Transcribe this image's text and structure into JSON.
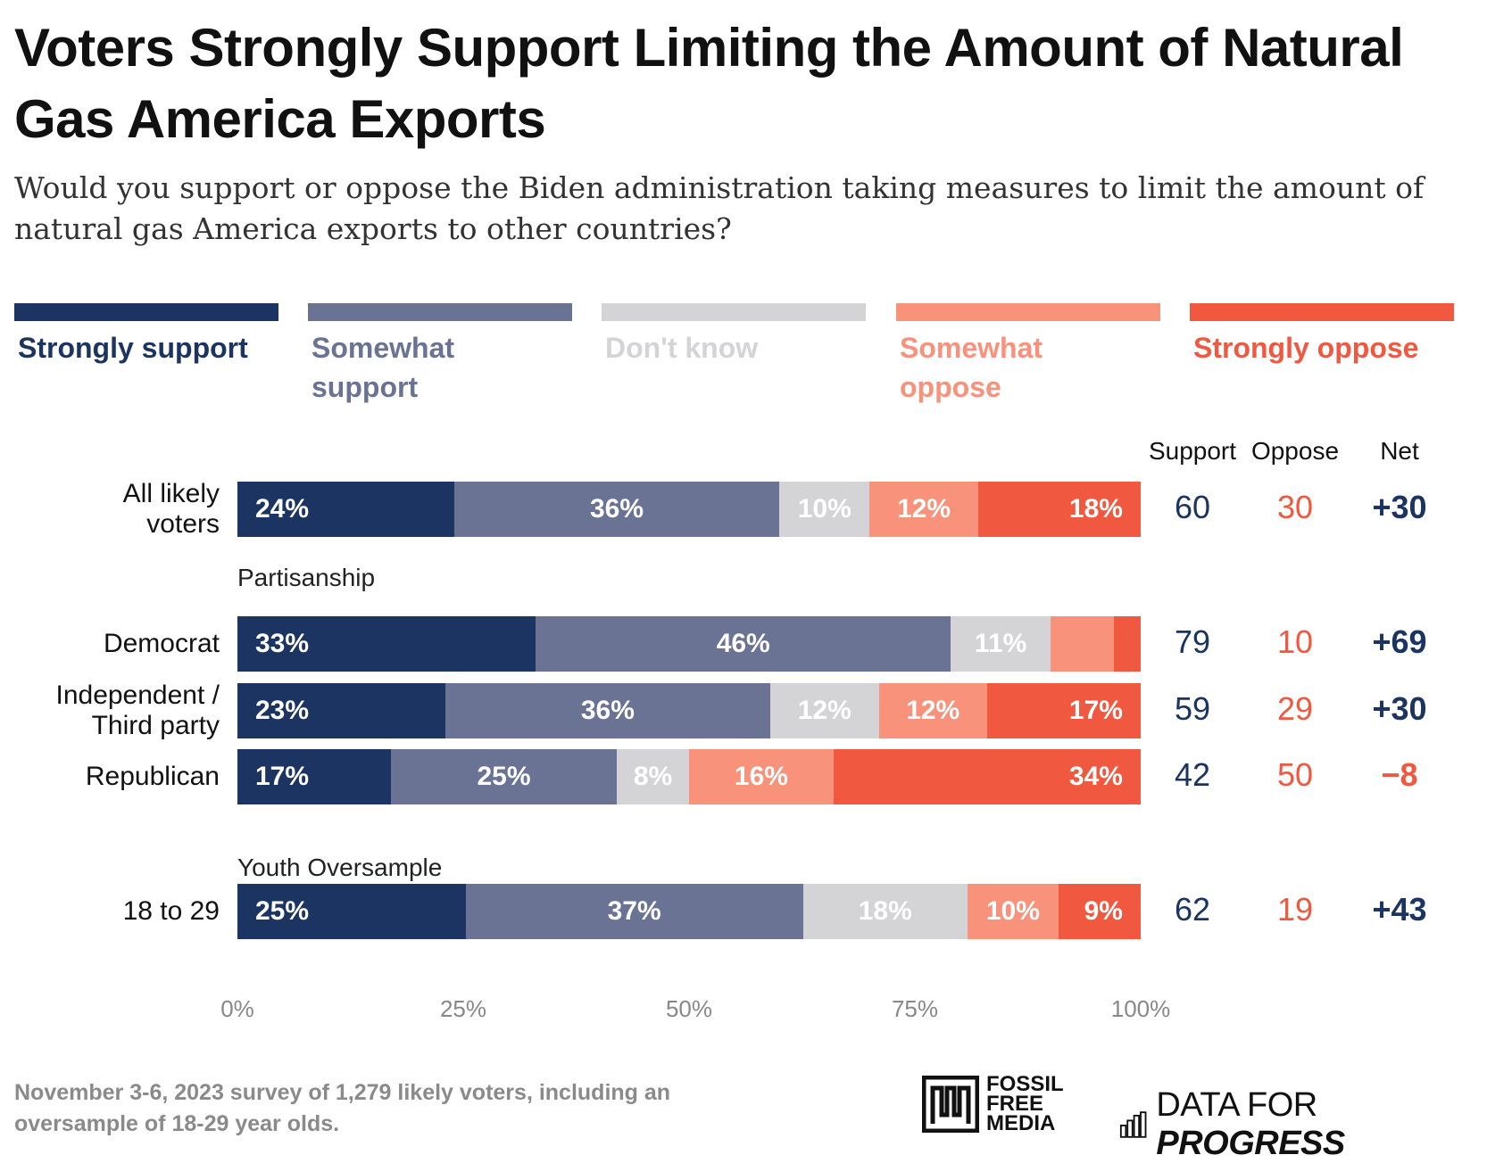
{
  "title": "Voters Strongly Support Limiting the Amount of Natural Gas America Exports",
  "subtitle": "Would you support or oppose the Biden administration taking measures to limit the amount of natural gas America exports to other countries?",
  "legend": [
    {
      "label": "Strongly support",
      "color": "#1c3461"
    },
    {
      "label": "Somewhat support",
      "color": "#6a7393"
    },
    {
      "label": "Don't know",
      "color": "#d4d4d6"
    },
    {
      "label": "Somewhat oppose",
      "color": "#f9927a"
    },
    {
      "label": "Strongly oppose",
      "color": "#f0583f"
    }
  ],
  "columns": {
    "support": "Support",
    "oppose": "Oppose",
    "net": "Net"
  },
  "stat_colors": {
    "support": "#1c3461",
    "oppose": "#f0583f"
  },
  "group_labels": {
    "partisanship": "Partisanship",
    "youth": "Youth Oversample"
  },
  "chart_data": {
    "type": "bar",
    "orientation": "horizontal",
    "stacked": true,
    "xlim": [
      0,
      100
    ],
    "x_ticks": [
      "0%",
      "25%",
      "50%",
      "75%",
      "100%"
    ],
    "series_names": [
      "Strongly support",
      "Somewhat support",
      "Don't know",
      "Somewhat oppose",
      "Strongly oppose"
    ],
    "rows": [
      {
        "label": "All likely\nvoters",
        "values": [
          24,
          36,
          10,
          12,
          18
        ],
        "labels": [
          "24%",
          "36%",
          "10%",
          "12%",
          "18%"
        ],
        "support": "60",
        "oppose": "30",
        "net": "+30"
      },
      {
        "label": "Democrat",
        "values": [
          33,
          46,
          11,
          7,
          3
        ],
        "labels": [
          "33%",
          "46%",
          "11%",
          "",
          ""
        ],
        "support": "79",
        "oppose": "10",
        "net": "+69"
      },
      {
        "label": "Independent /\nThird party",
        "values": [
          23,
          36,
          12,
          12,
          17
        ],
        "labels": [
          "23%",
          "36%",
          "12%",
          "12%",
          "17%"
        ],
        "support": "59",
        "oppose": "29",
        "net": "+30"
      },
      {
        "label": "Republican",
        "values": [
          17,
          25,
          8,
          16,
          34
        ],
        "labels": [
          "17%",
          "25%",
          "8%",
          "16%",
          "34%"
        ],
        "support": "42",
        "oppose": "50",
        "net": "−8"
      },
      {
        "label": "18 to 29",
        "values": [
          25,
          37,
          18,
          10,
          9
        ],
        "labels": [
          "25%",
          "37%",
          "18%",
          "10%",
          "9%"
        ],
        "support": "62",
        "oppose": "19",
        "net": "+43"
      }
    ]
  },
  "footnote": "November 3-6, 2023 survey of 1,279 likely voters, including an oversample of 18-29 year olds.",
  "logos": {
    "fossil_free_media": [
      "FOSSIL",
      "FREE",
      "MEDIA"
    ],
    "data_for_progress": {
      "plain": "DATA FOR ",
      "bold": "PROGRESS"
    }
  }
}
